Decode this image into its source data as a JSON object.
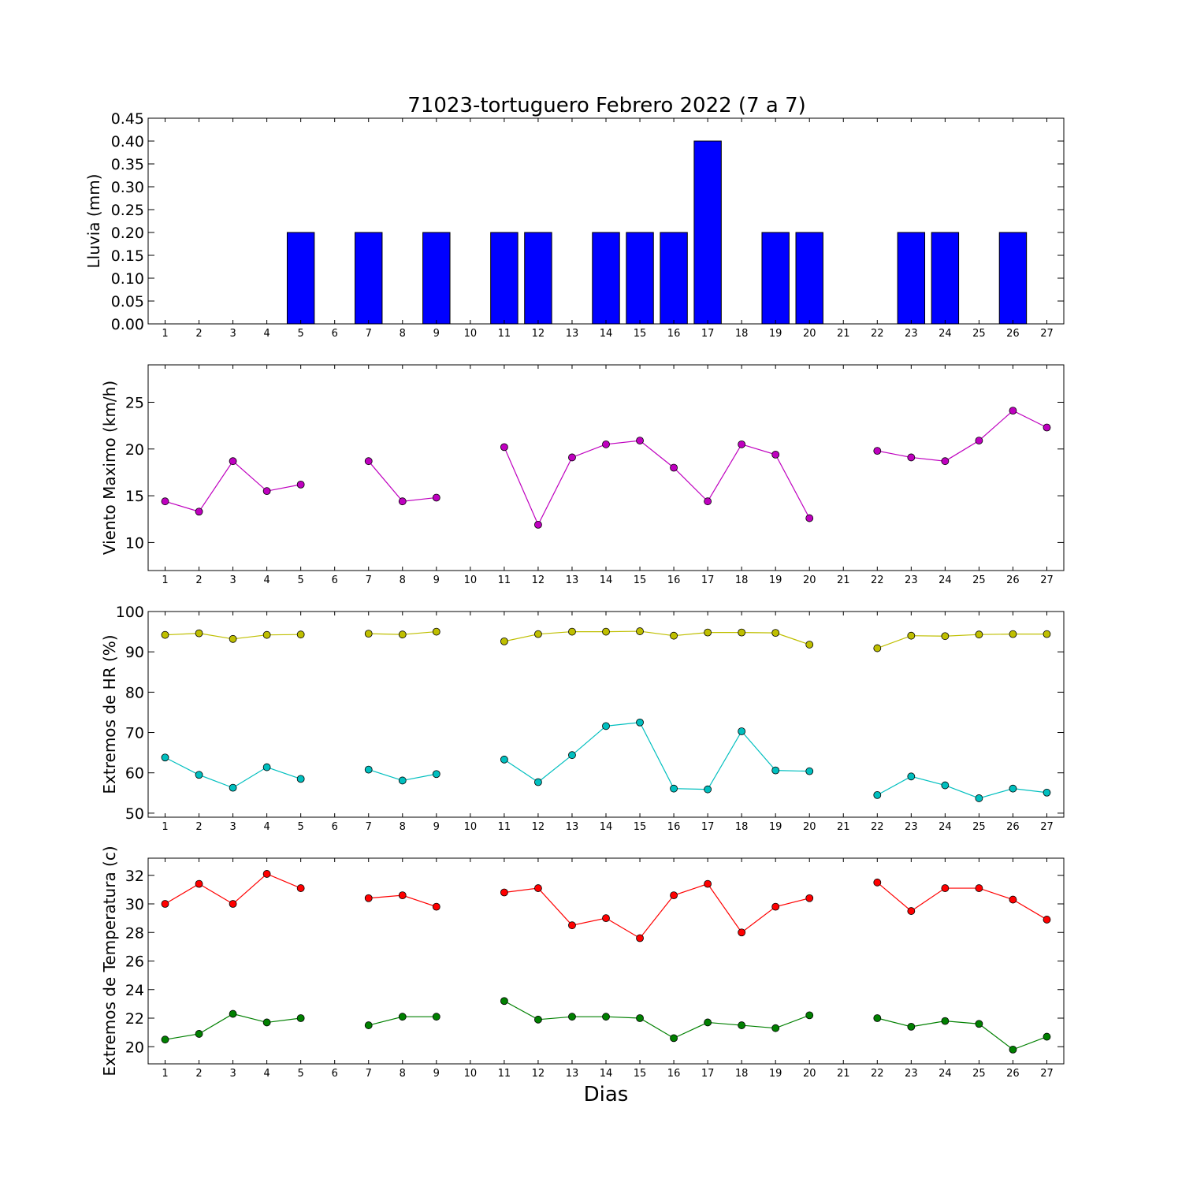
{
  "figure": {
    "title": "71023-tortuguero Febrero 2022  (7 a 7)",
    "xlabel": "Dias"
  },
  "chart_data": [
    {
      "type": "bar",
      "ylabel": "Lluvia (mm)",
      "xlim": [
        0.5,
        27.5
      ],
      "ylim": [
        0,
        0.45
      ],
      "yticks": [
        0.0,
        0.05,
        0.1,
        0.15,
        0.2,
        0.25,
        0.3,
        0.35,
        0.4,
        0.45
      ],
      "ytick_decimals": 2,
      "x": [
        1,
        2,
        3,
        4,
        5,
        7,
        8,
        9,
        11,
        12,
        13,
        14,
        15,
        16,
        17,
        18,
        19,
        20,
        22,
        23,
        24,
        25,
        26
      ],
      "values": [
        0,
        0,
        0,
        0,
        0.2,
        0.2,
        0,
        0.2,
        0.2,
        0.2,
        0,
        0.2,
        0.2,
        0.2,
        0.4,
        0,
        0.2,
        0.2,
        0,
        0.2,
        0.2,
        0,
        0.2
      ],
      "color": "#0000ff",
      "grid": false
    },
    {
      "type": "line",
      "ylabel": "Viento Maximo (km/h)",
      "xlim": [
        0.5,
        27.5
      ],
      "ylim": [
        7,
        29
      ],
      "yticks": [
        10,
        15,
        20,
        25
      ],
      "ytick_decimals": 0,
      "grid": false,
      "series": [
        {
          "color": "#bf00bf",
          "segments": [
            {
              "x": [
                1,
                2,
                3,
                4,
                5
              ],
              "y": [
                14.4,
                13.3,
                18.7,
                15.5,
                16.2
              ]
            },
            {
              "x": [
                7,
                8,
                9
              ],
              "y": [
                18.7,
                14.4,
                14.8
              ]
            },
            {
              "x": [
                11,
                12,
                13,
                14,
                15,
                16,
                17,
                18,
                19,
                20
              ],
              "y": [
                20.2,
                11.9,
                19.1,
                20.5,
                20.9,
                18.0,
                14.4,
                20.5,
                19.4,
                12.6
              ]
            },
            {
              "x": [
                22,
                23,
                24,
                25,
                26,
                27
              ],
              "y": [
                19.8,
                19.1,
                18.7,
                20.9,
                24.1,
                22.3
              ]
            }
          ]
        }
      ]
    },
    {
      "type": "line",
      "ylabel": "Extremos de HR (%)",
      "xlim": [
        0.5,
        27.5
      ],
      "ylim": [
        49,
        100
      ],
      "yticks": [
        50,
        60,
        70,
        80,
        90,
        100
      ],
      "ytick_decimals": 0,
      "grid": false,
      "series": [
        {
          "color": "#bfbf00",
          "segments": [
            {
              "x": [
                1,
                2,
                3,
                4,
                5
              ],
              "y": [
                94.2,
                94.6,
                93.2,
                94.2,
                94.3
              ]
            },
            {
              "x": [
                7,
                8,
                9
              ],
              "y": [
                94.5,
                94.3,
                95.0
              ]
            },
            {
              "x": [
                11,
                12,
                13,
                14,
                15,
                16,
                17,
                18,
                19,
                20
              ],
              "y": [
                92.6,
                94.4,
                95.0,
                95.0,
                95.1,
                94.0,
                94.8,
                94.8,
                94.7,
                91.8
              ]
            },
            {
              "x": [
                22,
                23,
                24,
                25,
                26,
                27
              ],
              "y": [
                90.9,
                94.0,
                93.9,
                94.3,
                94.4,
                94.4
              ]
            }
          ]
        },
        {
          "color": "#00bfbf",
          "segments": [
            {
              "x": [
                1,
                2,
                3,
                4,
                5
              ],
              "y": [
                63.8,
                59.5,
                56.3,
                61.4,
                58.5
              ]
            },
            {
              "x": [
                7,
                8,
                9
              ],
              "y": [
                60.8,
                58.1,
                59.7
              ]
            },
            {
              "x": [
                11,
                12,
                13,
                14,
                15,
                16,
                17,
                18,
                19,
                20
              ],
              "y": [
                63.3,
                57.7,
                64.4,
                71.6,
                72.5,
                56.1,
                55.9,
                70.3,
                60.6,
                60.4
              ]
            },
            {
              "x": [
                22,
                23,
                24,
                25,
                26,
                27
              ],
              "y": [
                54.5,
                59.1,
                56.9,
                53.7,
                56.1,
                55.1
              ]
            }
          ]
        }
      ]
    },
    {
      "type": "line",
      "ylabel": "Extremos de Temperatura (c)",
      "xlim": [
        0.5,
        27.5
      ],
      "ylim": [
        18.8,
        33.2
      ],
      "yticks": [
        20,
        22,
        24,
        26,
        28,
        30,
        32
      ],
      "ytick_decimals": 0,
      "grid": false,
      "series": [
        {
          "color": "#ff0000",
          "segments": [
            {
              "x": [
                1,
                2,
                3,
                4,
                5
              ],
              "y": [
                30.0,
                31.4,
                30.0,
                32.1,
                31.1
              ]
            },
            {
              "x": [
                7,
                8,
                9
              ],
              "y": [
                30.4,
                30.6,
                29.8
              ]
            },
            {
              "x": [
                11,
                12,
                13,
                14,
                15,
                16,
                17,
                18,
                19,
                20
              ],
              "y": [
                30.8,
                31.1,
                28.5,
                29.0,
                27.6,
                30.6,
                31.4,
                28.0,
                29.8,
                30.4
              ]
            },
            {
              "x": [
                22,
                23,
                24,
                25,
                26,
                27
              ],
              "y": [
                31.5,
                29.5,
                31.1,
                31.1,
                30.3,
                28.9
              ]
            }
          ]
        },
        {
          "color": "#008000",
          "segments": [
            {
              "x": [
                1,
                2,
                3,
                4,
                5
              ],
              "y": [
                20.5,
                20.9,
                22.3,
                21.7,
                22.0
              ]
            },
            {
              "x": [
                7,
                8,
                9
              ],
              "y": [
                21.5,
                22.1,
                22.1
              ]
            },
            {
              "x": [
                11,
                12,
                13,
                14,
                15,
                16,
                17,
                18,
                19,
                20
              ],
              "y": [
                23.2,
                21.9,
                22.1,
                22.1,
                22.0,
                20.6,
                21.7,
                21.5,
                21.3,
                22.2
              ]
            },
            {
              "x": [
                22,
                23,
                24,
                25,
                26,
                27
              ],
              "y": [
                22.0,
                21.4,
                21.8,
                21.6,
                19.8,
                20.7
              ]
            }
          ]
        }
      ]
    }
  ],
  "xticks": [
    1,
    2,
    3,
    4,
    5,
    6,
    7,
    8,
    9,
    10,
    11,
    12,
    13,
    14,
    15,
    16,
    17,
    18,
    19,
    20,
    21,
    22,
    23,
    24,
    25,
    26,
    27
  ]
}
